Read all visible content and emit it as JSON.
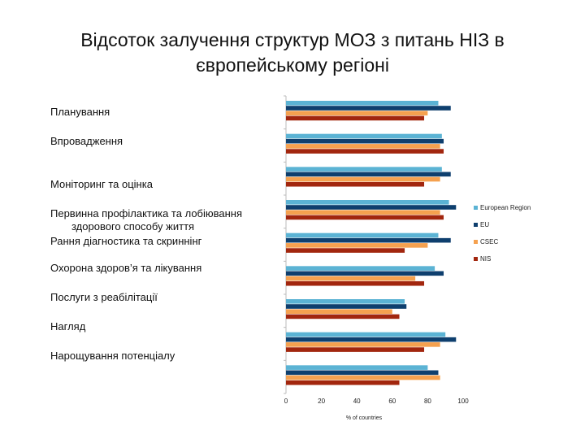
{
  "title": "Відсоток залучення структур МОЗ з питань НІЗ в європейському регіоні",
  "colors": {
    "european_region": "#5bb3d4",
    "eu": "#0e3f6e",
    "csec": "#f5a14f",
    "nis": "#a2260e"
  },
  "chart_data": {
    "type": "bar",
    "orientation": "horizontal",
    "categories": [
      "Планування",
      "Впровадження",
      "Моніторинг та оцінка",
      "Первинна профілактика та  лобіювання здорового способу життя",
      "Рання діагностика та скриннінг",
      "Охорона здоров’я та лікування",
      "Послуги з реабілітації",
      "Нагляд",
      "Нарощування потенціалу"
    ],
    "series": [
      {
        "name": "European Region",
        "color": "#5bb3d4",
        "values": [
          86,
          88,
          88,
          92,
          86,
          84,
          67,
          90,
          80
        ]
      },
      {
        "name": "EU",
        "color": "#0e3f6e",
        "values": [
          93,
          89,
          93,
          96,
          93,
          89,
          68,
          96,
          86
        ]
      },
      {
        "name": "CSEC",
        "color": "#f5a14f",
        "values": [
          80,
          87,
          87,
          87,
          80,
          73,
          60,
          87,
          87
        ]
      },
      {
        "name": "NIS",
        "color": "#a2260e",
        "values": [
          78,
          89,
          78,
          89,
          67,
          78,
          64,
          78,
          64
        ]
      }
    ],
    "xlim": [
      0,
      100
    ],
    "xticks": [
      "0",
      "20",
      "40",
      "60",
      "80",
      "100"
    ],
    "xlabel": "% of countries",
    "legend_position": "right"
  }
}
